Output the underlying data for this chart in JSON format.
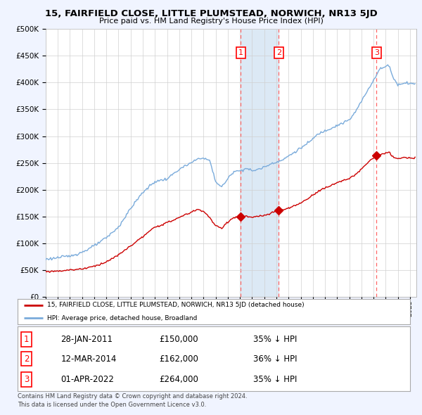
{
  "title": "15, FAIRFIELD CLOSE, LITTLE PLUMSTEAD, NORWICH, NR13 5JD",
  "subtitle": "Price paid vs. HM Land Registry's House Price Index (HPI)",
  "legend_line1": "15, FAIRFIELD CLOSE, LITTLE PLUMSTEAD, NORWICH, NR13 5JD (detached house)",
  "legend_line2": "HPI: Average price, detached house, Broadland",
  "footer1": "Contains HM Land Registry data © Crown copyright and database right 2024.",
  "footer2": "This data is licensed under the Open Government Licence v3.0.",
  "sales": [
    {
      "num": 1,
      "date": "28-JAN-2011",
      "price": "£150,000",
      "pct": "35% ↓ HPI"
    },
    {
      "num": 2,
      "date": "12-MAR-2014",
      "price": "£162,000",
      "pct": "36% ↓ HPI"
    },
    {
      "num": 3,
      "date": "01-APR-2022",
      "price": "£264,000",
      "pct": "35% ↓ HPI"
    }
  ],
  "sale_years": [
    2011.07,
    2014.19,
    2022.25
  ],
  "sale_prices": [
    150000,
    162000,
    264000
  ],
  "hpi_color": "#7aabdb",
  "price_color": "#cc0000",
  "vline_color": "#ff6666",
  "shade_color": "#dce9f5",
  "background_color": "#f0f4ff",
  "plot_bg": "#ffffff",
  "ylim": [
    0,
    500000
  ],
  "xlim": [
    1995,
    2025.5
  ],
  "hpi_keypoints": [
    [
      1995.0,
      70000
    ],
    [
      1996.0,
      73000
    ],
    [
      1997.0,
      76000
    ],
    [
      1998.0,
      83000
    ],
    [
      1999.0,
      95000
    ],
    [
      2000.0,
      110000
    ],
    [
      2001.0,
      130000
    ],
    [
      2002.0,
      165000
    ],
    [
      2003.0,
      195000
    ],
    [
      2004.0,
      215000
    ],
    [
      2005.0,
      220000
    ],
    [
      2006.0,
      238000
    ],
    [
      2007.0,
      250000
    ],
    [
      2007.7,
      260000
    ],
    [
      2008.5,
      255000
    ],
    [
      2009.0,
      215000
    ],
    [
      2009.5,
      205000
    ],
    [
      2010.0,
      220000
    ],
    [
      2010.5,
      235000
    ],
    [
      2011.0,
      235000
    ],
    [
      2011.5,
      240000
    ],
    [
      2012.0,
      235000
    ],
    [
      2012.5,
      238000
    ],
    [
      2013.0,
      242000
    ],
    [
      2013.5,
      248000
    ],
    [
      2014.0,
      252000
    ],
    [
      2014.5,
      255000
    ],
    [
      2015.0,
      263000
    ],
    [
      2015.5,
      270000
    ],
    [
      2016.0,
      278000
    ],
    [
      2016.5,
      285000
    ],
    [
      2017.0,
      295000
    ],
    [
      2017.5,
      305000
    ],
    [
      2018.0,
      310000
    ],
    [
      2018.5,
      315000
    ],
    [
      2019.0,
      320000
    ],
    [
      2019.5,
      325000
    ],
    [
      2020.0,
      330000
    ],
    [
      2020.5,
      345000
    ],
    [
      2021.0,
      365000
    ],
    [
      2021.5,
      385000
    ],
    [
      2022.0,
      405000
    ],
    [
      2022.5,
      425000
    ],
    [
      2023.0,
      430000
    ],
    [
      2023.3,
      433000
    ],
    [
      2023.5,
      415000
    ],
    [
      2024.0,
      395000
    ],
    [
      2024.5,
      400000
    ],
    [
      2025.3,
      398000
    ]
  ],
  "price_keypoints": [
    [
      1995.0,
      47000
    ],
    [
      1996.0,
      48000
    ],
    [
      1997.0,
      50000
    ],
    [
      1998.0,
      52000
    ],
    [
      1999.0,
      57000
    ],
    [
      2000.0,
      65000
    ],
    [
      2001.0,
      78000
    ],
    [
      2002.0,
      95000
    ],
    [
      2003.0,
      112000
    ],
    [
      2004.0,
      130000
    ],
    [
      2005.0,
      138000
    ],
    [
      2006.0,
      148000
    ],
    [
      2007.0,
      158000
    ],
    [
      2007.5,
      163000
    ],
    [
      2008.0,
      160000
    ],
    [
      2008.5,
      148000
    ],
    [
      2009.0,
      132000
    ],
    [
      2009.5,
      128000
    ],
    [
      2010.0,
      140000
    ],
    [
      2010.5,
      148000
    ],
    [
      2011.07,
      150000
    ],
    [
      2011.5,
      150000
    ],
    [
      2012.0,
      148000
    ],
    [
      2012.5,
      150000
    ],
    [
      2013.0,
      152000
    ],
    [
      2013.5,
      155000
    ],
    [
      2014.19,
      162000
    ],
    [
      2014.5,
      162000
    ],
    [
      2015.0,
      165000
    ],
    [
      2015.5,
      170000
    ],
    [
      2016.0,
      175000
    ],
    [
      2016.5,
      182000
    ],
    [
      2017.0,
      190000
    ],
    [
      2017.5,
      198000
    ],
    [
      2018.0,
      203000
    ],
    [
      2018.5,
      208000
    ],
    [
      2019.0,
      213000
    ],
    [
      2019.5,
      218000
    ],
    [
      2020.0,
      220000
    ],
    [
      2020.5,
      228000
    ],
    [
      2021.0,
      238000
    ],
    [
      2021.5,
      250000
    ],
    [
      2022.0,
      260000
    ],
    [
      2022.25,
      264000
    ],
    [
      2022.5,
      265000
    ],
    [
      2023.0,
      268000
    ],
    [
      2023.3,
      270000
    ],
    [
      2023.5,
      262000
    ],
    [
      2024.0,
      258000
    ],
    [
      2024.5,
      260000
    ],
    [
      2025.3,
      258000
    ]
  ]
}
